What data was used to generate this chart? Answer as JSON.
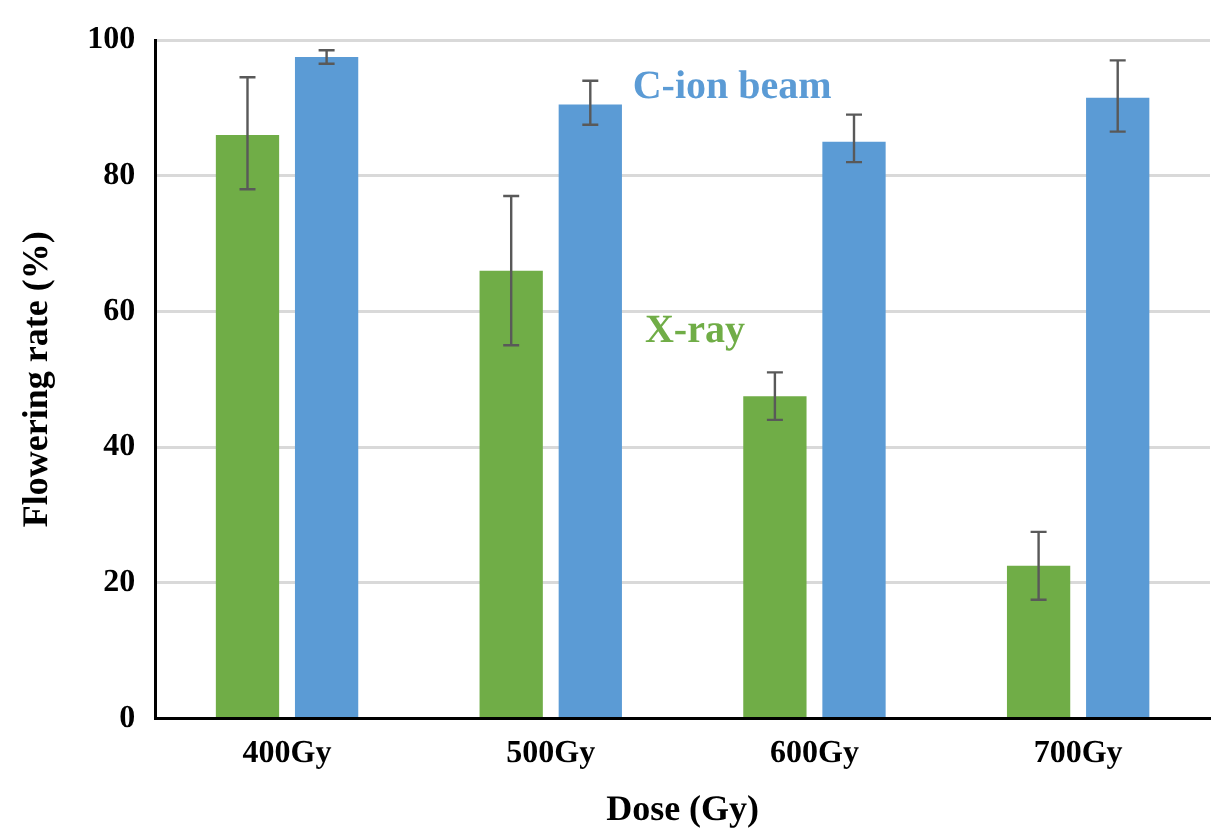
{
  "chart_data": {
    "type": "bar",
    "xlabel": "Dose (Gy)",
    "ylabel": "Flowering rate (%)",
    "categories": [
      "400Gy",
      "500Gy",
      "600Gy",
      "700Gy"
    ],
    "series": [
      {
        "name": "X-ray",
        "color": "#70ad47",
        "values": [
          86,
          66,
          47.5,
          22.5
        ],
        "errors": [
          [
            78,
            94.5
          ],
          [
            55,
            77
          ],
          [
            44,
            51
          ],
          [
            17.5,
            27.5
          ]
        ]
      },
      {
        "name": "C-ion beam",
        "color": "#5b9bd5",
        "values": [
          97.5,
          90.5,
          85,
          91.5
        ],
        "errors": [
          [
            96.5,
            98.5
          ],
          [
            87.5,
            94
          ],
          [
            82,
            89
          ],
          [
            86.5,
            97
          ]
        ]
      }
    ],
    "ylim": [
      0,
      100
    ],
    "yticks": [
      0,
      20,
      40,
      60,
      80,
      100
    ],
    "grid": "y",
    "legend": false
  }
}
